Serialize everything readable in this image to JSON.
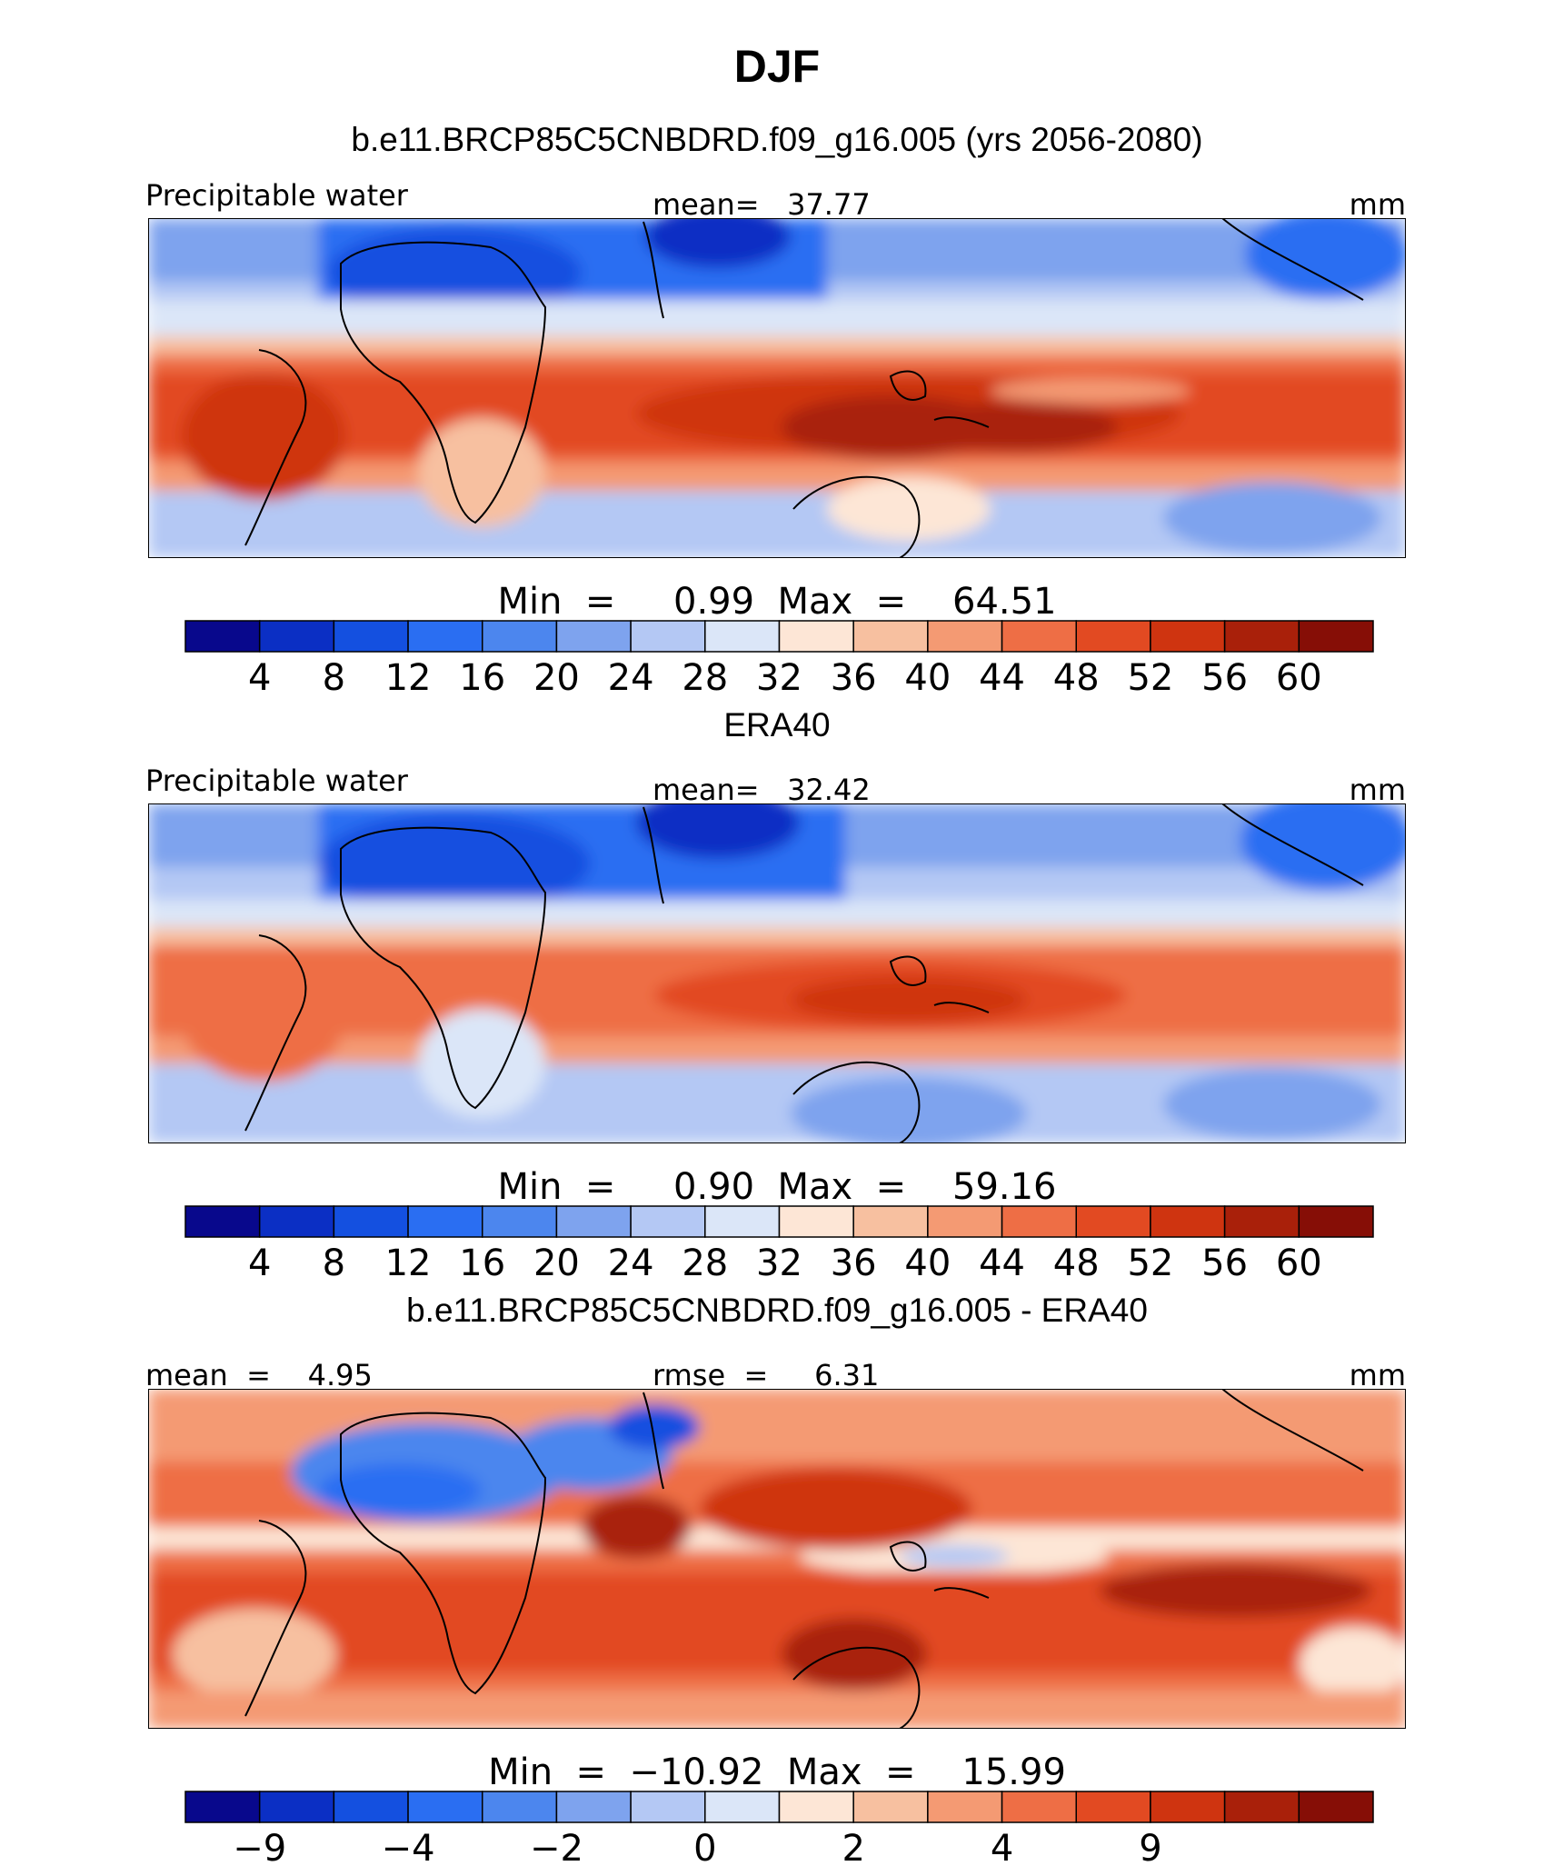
{
  "title": "DJF",
  "palette": [
    "#08088c",
    "#0b2fc4",
    "#1450e0",
    "#2a6ef2",
    "#4c86ee",
    "#7ea3ee",
    "#b4c8f4",
    "#dbe6f8",
    "#fde6d6",
    "#f7c0a0",
    "#f49a73",
    "#ee6e45",
    "#e24a22",
    "#cf3410",
    "#a9200a",
    "#860e06"
  ],
  "chart_data": [
    {
      "type": "heatmap",
      "name": "model",
      "title": "b.e11.BRCP85C5CNBDRD.f09_g16.005 (yrs 2056-2080)",
      "left_label": "Precipitable water",
      "center_label": "mean=   37.77",
      "right_label": "mm",
      "minmax_label": "Min  =     0.99  Max  =    64.51",
      "min": 0.99,
      "max": 64.51,
      "mean": 37.77,
      "colorbar_levels": [
        "4",
        "8",
        "12",
        "16",
        "20",
        "24",
        "28",
        "32",
        "36",
        "40",
        "44",
        "48",
        "52",
        "56",
        "60"
      ]
    },
    {
      "type": "heatmap",
      "name": "obs",
      "title": "ERA40",
      "left_label": "Precipitable water",
      "center_label": "mean=   32.42",
      "right_label": "mm",
      "minmax_label": "Min  =     0.90  Max  =    59.16",
      "min": 0.9,
      "max": 59.16,
      "mean": 32.42,
      "colorbar_levels": [
        "4",
        "8",
        "12",
        "16",
        "20",
        "24",
        "28",
        "32",
        "36",
        "40",
        "44",
        "48",
        "52",
        "56",
        "60"
      ]
    },
    {
      "type": "heatmap",
      "name": "diff",
      "title": "b.e11.BRCP85C5CNBDRD.f09_g16.005 - ERA40",
      "left_label": "mean  =    4.95",
      "center_label": "rmse  =     6.31",
      "right_label": "mm",
      "minmax_label": "Min  =  −10.92  Max  =    15.99",
      "min": -10.92,
      "max": 15.99,
      "mean": 4.95,
      "rmse": 6.31,
      "colorbar_levels": [
        "−9",
        "",
        "−4",
        "",
        "−2",
        "",
        "0",
        "",
        "2",
        "",
        "4",
        "",
        "9",
        "",
        ""
      ]
    }
  ]
}
